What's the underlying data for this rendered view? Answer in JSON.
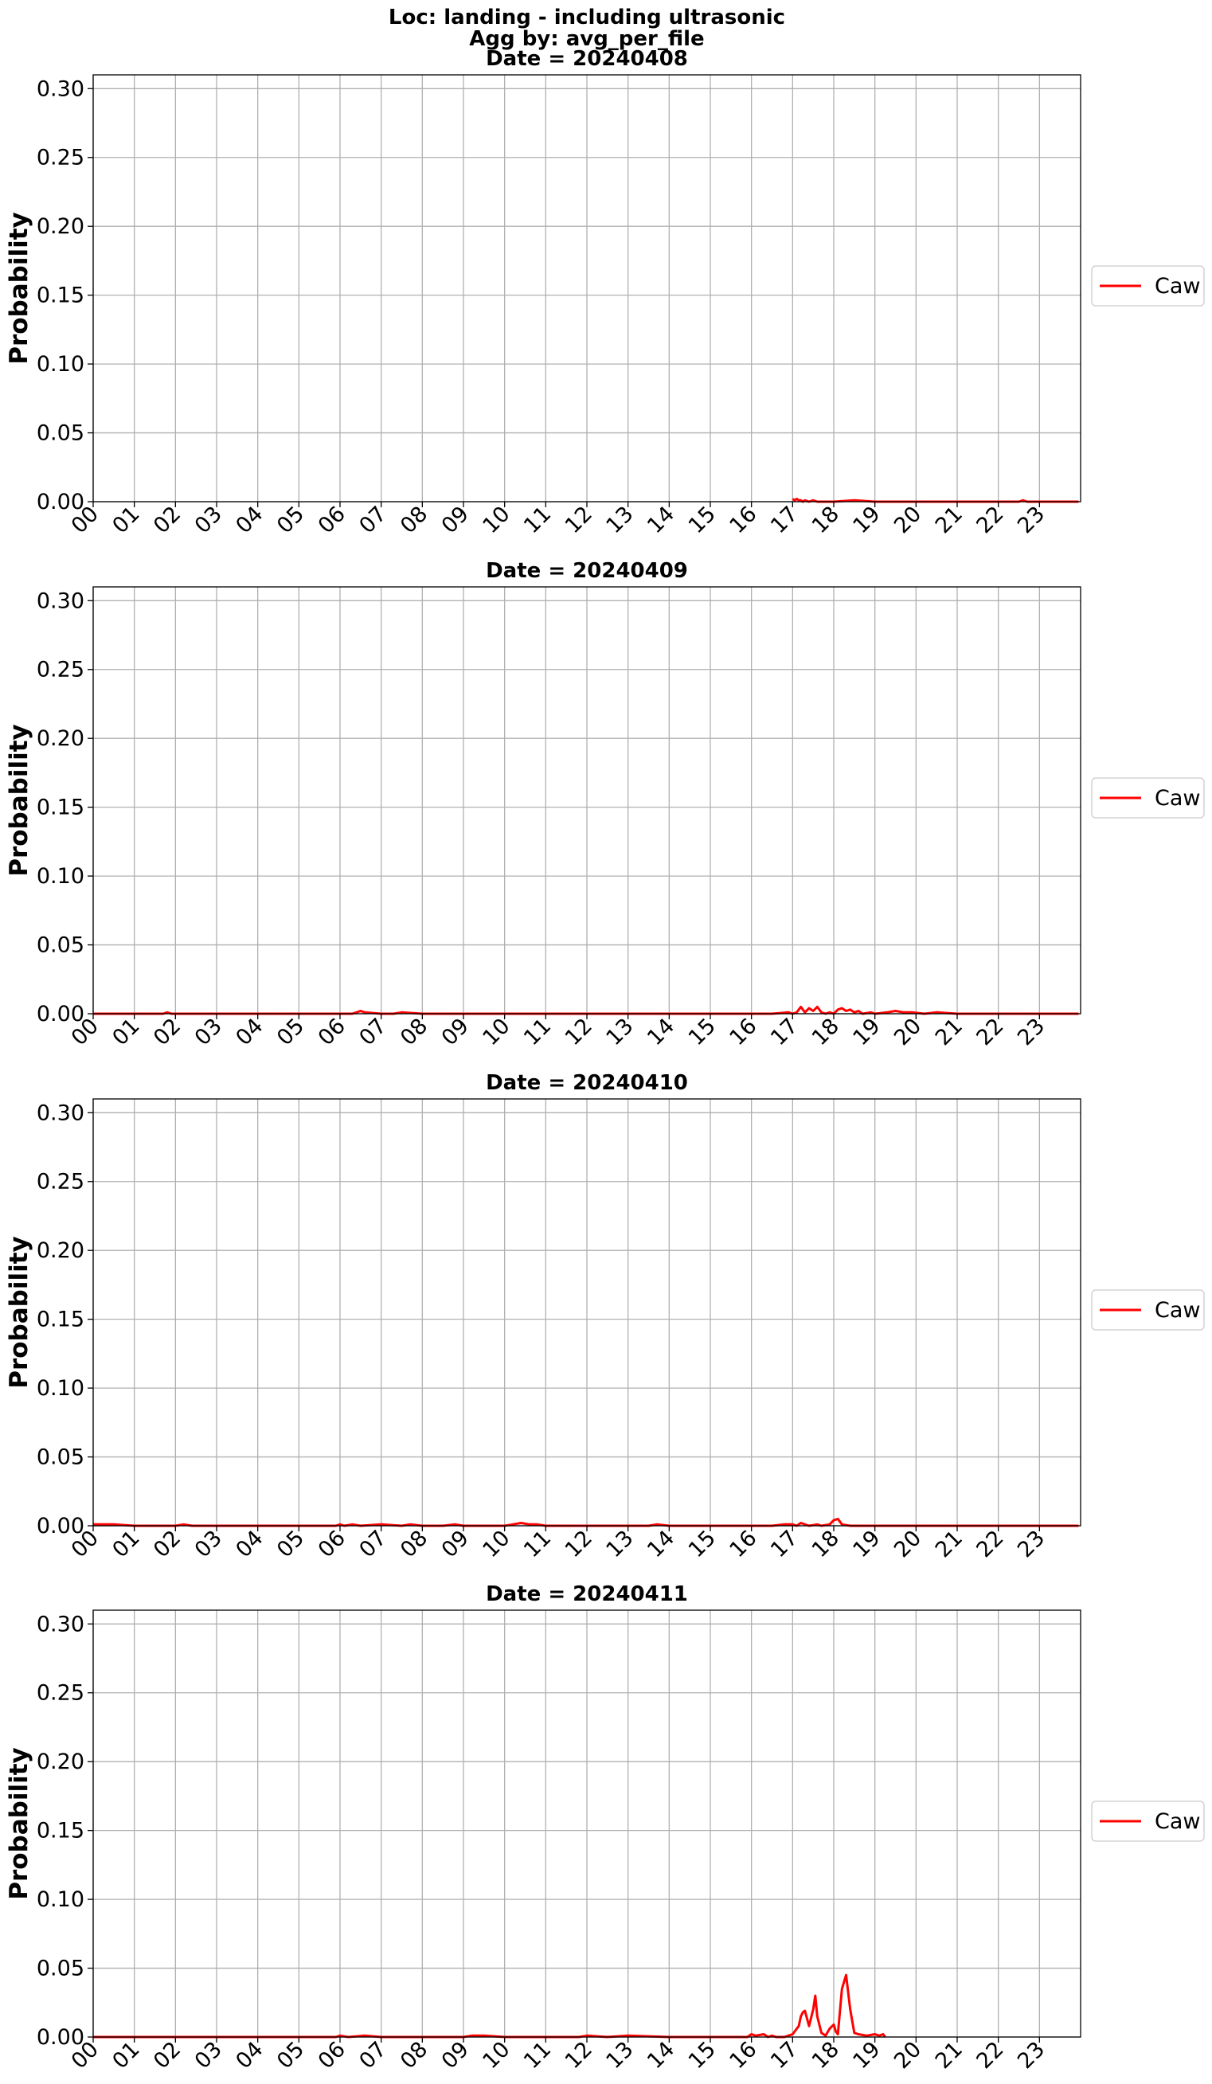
{
  "figure": {
    "title_lines": [
      "Loc: landing - including ultrasonic",
      "Agg by: avg_per_file"
    ]
  },
  "chart_data": [
    {
      "type": "line",
      "title": "Date = 20240408",
      "xlabel": "",
      "ylabel": "Probability",
      "xlim": [
        0,
        24
      ],
      "ylim": [
        0,
        0.31
      ],
      "xticks": [
        "00",
        "01",
        "02",
        "03",
        "04",
        "05",
        "06",
        "07",
        "08",
        "09",
        "10",
        "11",
        "12",
        "13",
        "14",
        "15",
        "16",
        "17",
        "18",
        "19",
        "20",
        "21",
        "22",
        "23"
      ],
      "yticks": [
        "0.00",
        "0.05",
        "0.10",
        "0.15",
        "0.20",
        "0.25",
        "0.30"
      ],
      "grid": true,
      "legend": "center-right",
      "series": [
        {
          "name": "Caw",
          "color": "#ff0000",
          "x": [
            17.0,
            17.05,
            17.1,
            17.15,
            17.2,
            17.25,
            17.3,
            17.4,
            17.5,
            17.6,
            18.0,
            18.5,
            19.0,
            19.5,
            20.0,
            20.5,
            21.0,
            21.5,
            22.0,
            22.5,
            22.6,
            22.7,
            23.0,
            23.5,
            23.95
          ],
          "y": [
            0.002,
            0.001,
            0.002,
            0.001,
            0.001,
            0.0,
            0.001,
            0.0,
            0.001,
            0.0,
            0.0,
            0.001,
            0.0,
            0.0,
            0.0,
            0.0,
            0.0,
            0.0,
            0.0,
            0.0,
            0.001,
            0.0,
            0.0,
            0.0,
            0.0
          ]
        }
      ]
    },
    {
      "type": "line",
      "title": "Date = 20240409",
      "xlabel": "",
      "ylabel": "Probability",
      "xlim": [
        0,
        24
      ],
      "ylim": [
        0,
        0.31
      ],
      "xticks": [
        "00",
        "01",
        "02",
        "03",
        "04",
        "05",
        "06",
        "07",
        "08",
        "09",
        "10",
        "11",
        "12",
        "13",
        "14",
        "15",
        "16",
        "17",
        "18",
        "19",
        "20",
        "21",
        "22",
        "23"
      ],
      "yticks": [
        "0.00",
        "0.05",
        "0.10",
        "0.15",
        "0.20",
        "0.25",
        "0.30"
      ],
      "grid": true,
      "legend": "center-right",
      "series": [
        {
          "name": "Caw",
          "color": "#ff0000",
          "x": [
            0.0,
            1.0,
            1.7,
            1.8,
            1.9,
            3.0,
            5.0,
            6.0,
            6.3,
            6.4,
            6.5,
            6.6,
            7.0,
            7.3,
            7.5,
            8.0,
            9.0,
            11.0,
            13.0,
            15.0,
            16.5,
            16.9,
            17.0,
            17.1,
            17.2,
            17.3,
            17.4,
            17.5,
            17.6,
            17.7,
            17.8,
            17.9,
            18.0,
            18.1,
            18.2,
            18.3,
            18.4,
            18.5,
            18.6,
            18.7,
            18.9,
            19.0,
            19.3,
            19.5,
            19.7,
            19.9,
            20.2,
            20.5,
            21.0,
            22.0,
            23.0,
            23.95
          ],
          "y": [
            0.0,
            0.0,
            0.0,
            0.001,
            0.0,
            0.0,
            0.0,
            0.0,
            0.0,
            0.001,
            0.002,
            0.001,
            0.0,
            0.0,
            0.001,
            0.0,
            0.0,
            0.0,
            0.0,
            0.0,
            0.0,
            0.001,
            0.0,
            0.001,
            0.005,
            0.001,
            0.004,
            0.002,
            0.005,
            0.001,
            0.0,
            0.001,
            0.0,
            0.003,
            0.004,
            0.002,
            0.003,
            0.001,
            0.002,
            0.0,
            0.001,
            0.0,
            0.001,
            0.002,
            0.001,
            0.001,
            0.0,
            0.001,
            0.0,
            0.0,
            0.0,
            0.0
          ]
        }
      ]
    },
    {
      "type": "line",
      "title": "Date = 20240410",
      "xlabel": "",
      "ylabel": "Probability",
      "xlim": [
        0,
        24
      ],
      "ylim": [
        0,
        0.31
      ],
      "xticks": [
        "00",
        "01",
        "02",
        "03",
        "04",
        "05",
        "06",
        "07",
        "08",
        "09",
        "10",
        "11",
        "12",
        "13",
        "14",
        "15",
        "16",
        "17",
        "18",
        "19",
        "20",
        "21",
        "22",
        "23"
      ],
      "yticks": [
        "0.00",
        "0.05",
        "0.10",
        "0.15",
        "0.20",
        "0.25",
        "0.30"
      ],
      "grid": true,
      "legend": "center-right",
      "series": [
        {
          "name": "Caw",
          "color": "#ff0000",
          "x": [
            0.0,
            0.5,
            1.0,
            2.0,
            2.2,
            2.4,
            3.0,
            5.0,
            5.9,
            6.0,
            6.1,
            6.3,
            6.5,
            7.0,
            7.5,
            7.7,
            8.0,
            8.5,
            8.8,
            9.0,
            9.3,
            10.0,
            10.2,
            10.4,
            10.6,
            10.8,
            11.0,
            12.0,
            13.0,
            13.5,
            13.7,
            14.0,
            15.0,
            16.0,
            16.5,
            16.8,
            17.0,
            17.1,
            17.2,
            17.4,
            17.6,
            17.7,
            17.9,
            18.0,
            18.1,
            18.2,
            18.4,
            19.0,
            20.0,
            22.0,
            23.95
          ],
          "y": [
            0.001,
            0.001,
            0.0,
            0.0,
            0.001,
            0.0,
            0.0,
            0.0,
            0.0,
            0.001,
            0.0,
            0.001,
            0.0,
            0.001,
            0.0,
            0.001,
            0.0,
            0.0,
            0.001,
            0.0,
            0.0,
            0.0,
            0.001,
            0.002,
            0.001,
            0.001,
            0.0,
            0.0,
            0.0,
            0.0,
            0.001,
            0.0,
            0.0,
            0.0,
            0.0,
            0.001,
            0.001,
            0.0,
            0.002,
            0.0,
            0.001,
            0.0,
            0.001,
            0.004,
            0.005,
            0.001,
            0.0,
            0.0,
            0.0,
            0.0,
            0.0
          ]
        }
      ]
    },
    {
      "type": "line",
      "title": "Date = 20240411",
      "xlabel": "",
      "ylabel": "Probability",
      "xlim": [
        0,
        24
      ],
      "ylim": [
        0,
        0.31
      ],
      "xticks": [
        "00",
        "01",
        "02",
        "03",
        "04",
        "05",
        "06",
        "07",
        "08",
        "09",
        "10",
        "11",
        "12",
        "13",
        "14",
        "15",
        "16",
        "17",
        "18",
        "19",
        "20",
        "21",
        "22",
        "23"
      ],
      "yticks": [
        "0.00",
        "0.05",
        "0.10",
        "0.15",
        "0.20",
        "0.25",
        "0.30"
      ],
      "grid": true,
      "legend": "center-right",
      "series": [
        {
          "name": "Caw",
          "color": "#ff0000",
          "x": [
            0.0,
            2.0,
            4.0,
            5.9,
            6.0,
            6.2,
            6.6,
            7.0,
            7.5,
            8.0,
            9.0,
            9.2,
            9.5,
            10.0,
            11.0,
            11.8,
            12.0,
            12.5,
            13.0,
            14.0,
            15.0,
            15.9,
            16.0,
            16.1,
            16.3,
            16.4,
            16.5,
            16.6,
            16.8,
            17.0,
            17.1,
            17.15,
            17.2,
            17.25,
            17.3,
            17.4,
            17.5,
            17.55,
            17.6,
            17.7,
            17.8,
            17.9,
            18.0,
            18.05,
            18.1,
            18.2,
            18.3,
            18.4,
            18.5,
            18.6,
            18.8,
            19.0,
            19.1,
            19.2,
            19.25
          ],
          "y": [
            0.0,
            0.0,
            0.0,
            0.0,
            0.001,
            0.0,
            0.001,
            0.0,
            0.0,
            0.0,
            0.0,
            0.001,
            0.001,
            0.0,
            0.0,
            0.0,
            0.001,
            0.0,
            0.001,
            0.0,
            0.0,
            0.0,
            0.002,
            0.001,
            0.002,
            0.0,
            0.001,
            0.0,
            0.0,
            0.002,
            0.006,
            0.008,
            0.015,
            0.018,
            0.019,
            0.008,
            0.02,
            0.03,
            0.015,
            0.003,
            0.001,
            0.006,
            0.009,
            0.004,
            0.002,
            0.035,
            0.045,
            0.02,
            0.003,
            0.002,
            0.001,
            0.002,
            0.001,
            0.002,
            0.0
          ]
        }
      ]
    }
  ]
}
